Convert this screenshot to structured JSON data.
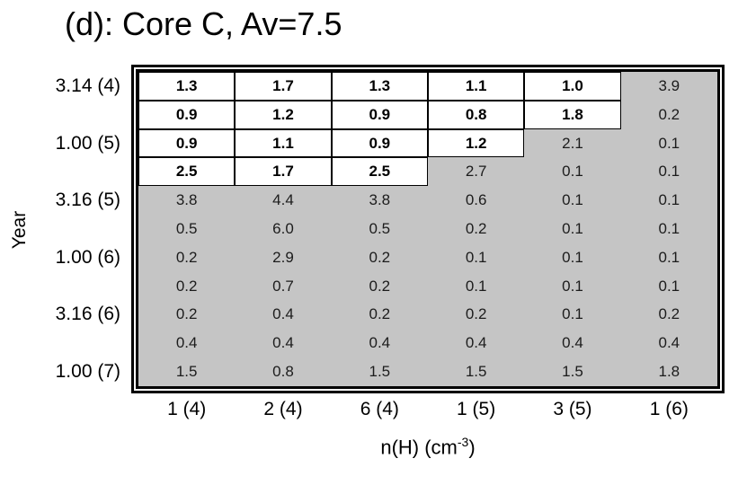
{
  "title": "(d): Core C, Av=7.5",
  "y_axis": {
    "title": "Year"
  },
  "x_axis": {
    "title_prefix": "n(H) (cm",
    "title_sup": "-3",
    "title_suffix": ")"
  },
  "colors": {
    "cell_highlight": "#ffffff",
    "cell_base": "#c5c5c5",
    "frame": "#000000",
    "text": "#000000"
  },
  "chart_data": {
    "type": "heatmap",
    "title": "(d): Core C, Av=7.5",
    "xlabel": "n(H) (cm⁻³)",
    "ylabel": "Year",
    "x_tick_labels": [
      "1 (4)",
      "2 (4)",
      "6 (4)",
      "1 (5)",
      "3 (5)",
      "1 (6)"
    ],
    "y_tick_labels": [
      "3.14 (4)",
      "1.00 (5)",
      "3.16 (5)",
      "1.00 (6)",
      "3.16 (6)",
      "1.00 (7)"
    ],
    "legend": "white_cells = count of highlighted (white, bold, bordered) cells from the left in that row; remaining cells are gray",
    "rows": [
      {
        "y_label": "3.14 (4)",
        "values": [
          "1.3",
          "1.7",
          "1.3",
          "1.1",
          "1.0",
          "3.9"
        ],
        "white_cells": 5
      },
      {
        "y_label": "",
        "values": [
          "0.9",
          "1.2",
          "0.9",
          "0.8",
          "1.8",
          "0.2"
        ],
        "white_cells": 5
      },
      {
        "y_label": "1.00 (5)",
        "values": [
          "0.9",
          "1.1",
          "0.9",
          "1.2",
          "2.1",
          "0.1"
        ],
        "white_cells": 4
      },
      {
        "y_label": "",
        "values": [
          "2.5",
          "1.7",
          "2.5",
          "2.7",
          "0.1",
          "0.1"
        ],
        "white_cells": 3
      },
      {
        "y_label": "3.16 (5)",
        "values": [
          "3.8",
          "4.4",
          "3.8",
          "0.6",
          "0.1",
          "0.1"
        ],
        "white_cells": 0
      },
      {
        "y_label": "",
        "values": [
          "0.5",
          "6.0",
          "0.5",
          "0.2",
          "0.1",
          "0.1"
        ],
        "white_cells": 0
      },
      {
        "y_label": "1.00 (6)",
        "values": [
          "0.2",
          "2.9",
          "0.2",
          "0.1",
          "0.1",
          "0.1"
        ],
        "white_cells": 0
      },
      {
        "y_label": "",
        "values": [
          "0.2",
          "0.7",
          "0.2",
          "0.1",
          "0.1",
          "0.1"
        ],
        "white_cells": 0
      },
      {
        "y_label": "3.16 (6)",
        "values": [
          "0.2",
          "0.4",
          "0.2",
          "0.2",
          "0.1",
          "0.2"
        ],
        "white_cells": 0
      },
      {
        "y_label": "",
        "values": [
          "0.4",
          "0.4",
          "0.4",
          "0.4",
          "0.4",
          "0.4"
        ],
        "white_cells": 0
      },
      {
        "y_label": "1.00 (7)",
        "values": [
          "1.5",
          "0.8",
          "1.5",
          "1.5",
          "1.5",
          "1.8"
        ],
        "white_cells": 0
      }
    ]
  }
}
